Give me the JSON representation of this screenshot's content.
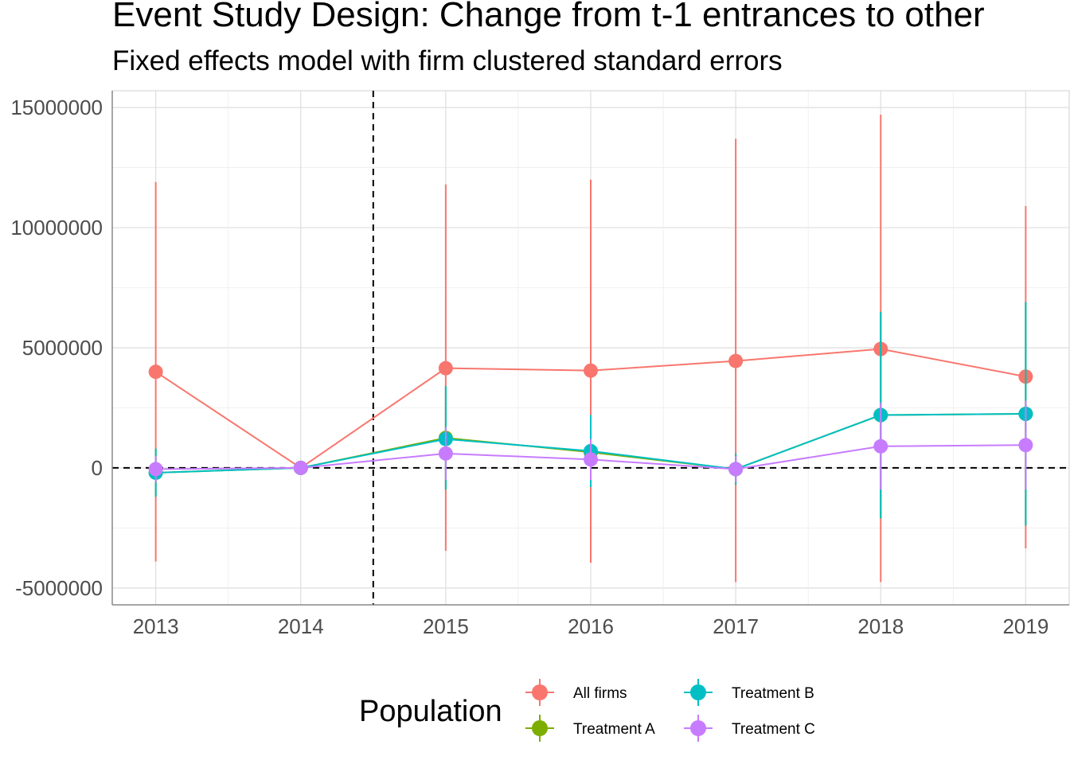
{
  "chart_data": {
    "type": "line",
    "title": "Event Study Design: Change from t-1 entrances to other",
    "subtitle": "Fixed effects model with firm clustered standard errors",
    "x": [
      2013,
      2014,
      2015,
      2016,
      2017,
      2018,
      2019
    ],
    "xlim": [
      2012.7,
      2019.3
    ],
    "ylim": [
      -5700000,
      15700000
    ],
    "y_ticks": [
      -5000000,
      0,
      5000000,
      10000000,
      15000000
    ],
    "y_tick_labels": [
      "-5000000",
      "0",
      "5000000",
      "10000000",
      "15000000"
    ],
    "reference_lines": {
      "hline": 0,
      "vline": 2014.5
    },
    "grid": true,
    "legend": {
      "title": "Population",
      "position": "bottom"
    },
    "series": [
      {
        "name": "All firms",
        "color": "#F8766D",
        "values": [
          4000000,
          0,
          4150000,
          4050000,
          4450000,
          4950000,
          3800000
        ],
        "lower": [
          -3900000,
          0,
          -3450000,
          -3950000,
          -4750000,
          -4750000,
          -3350000
        ],
        "upper": [
          11900000,
          0,
          11800000,
          12000000,
          13700000,
          14700000,
          10900000
        ]
      },
      {
        "name": "Treatment A",
        "color": "#7CAE00",
        "values": [
          -200000,
          0,
          1250000,
          650000,
          -50000,
          2200000,
          2250000
        ],
        "lower": [
          -1200000,
          0,
          -900000,
          -800000,
          -700000,
          -2100000,
          -2400000
        ],
        "upper": [
          800000,
          0,
          3400000,
          2200000,
          600000,
          6500000,
          6900000
        ]
      },
      {
        "name": "Treatment B",
        "color": "#00BFC4",
        "values": [
          -200000,
          0,
          1200000,
          700000,
          -50000,
          2200000,
          2250000
        ],
        "lower": [
          -1200000,
          0,
          -900000,
          -800000,
          -700000,
          -2100000,
          -2400000
        ],
        "upper": [
          800000,
          0,
          3400000,
          2200000,
          600000,
          6500000,
          6900000
        ]
      },
      {
        "name": "Treatment C",
        "color": "#C77CFF",
        "values": [
          -50000,
          0,
          600000,
          350000,
          -50000,
          900000,
          950000
        ],
        "lower": [
          -600000,
          0,
          -500000,
          -500000,
          -600000,
          -900000,
          -900000
        ],
        "upper": [
          500000,
          0,
          1700000,
          1200000,
          500000,
          2700000,
          2800000
        ]
      }
    ]
  }
}
